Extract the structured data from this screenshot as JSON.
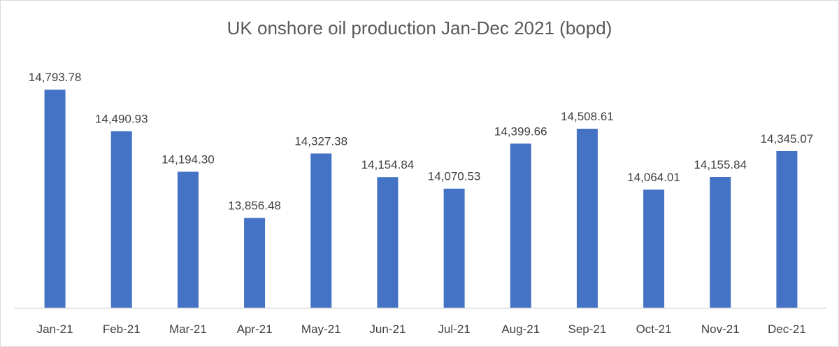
{
  "chart_data": {
    "type": "bar",
    "title": "UK onshore oil production Jan-Dec 2021 (bopd)",
    "xlabel": "",
    "ylabel": "",
    "categories": [
      "Jan-21",
      "Feb-21",
      "Mar-21",
      "Apr-21",
      "May-21",
      "Jun-21",
      "Jul-21",
      "Aug-21",
      "Sep-21",
      "Oct-21",
      "Nov-21",
      "Dec-21"
    ],
    "values": [
      14793.78,
      14490.93,
      14194.3,
      13856.48,
      14327.38,
      14154.84,
      14070.53,
      14399.66,
      14508.61,
      14064.01,
      14155.84,
      14345.07
    ],
    "value_labels": [
      "14,793.78",
      "14,490.93",
      "14,194.30",
      "13,856.48",
      "14,327.38",
      "14,154.84",
      "14,070.53",
      "14,399.66",
      "14,508.61",
      "14,064.01",
      "14,155.84",
      "14,345.07"
    ],
    "ylim": [
      13200,
      14800
    ],
    "grid": false,
    "legend": "none",
    "bar_color": "#4472c4",
    "axis_color": "#d9d9d9"
  }
}
